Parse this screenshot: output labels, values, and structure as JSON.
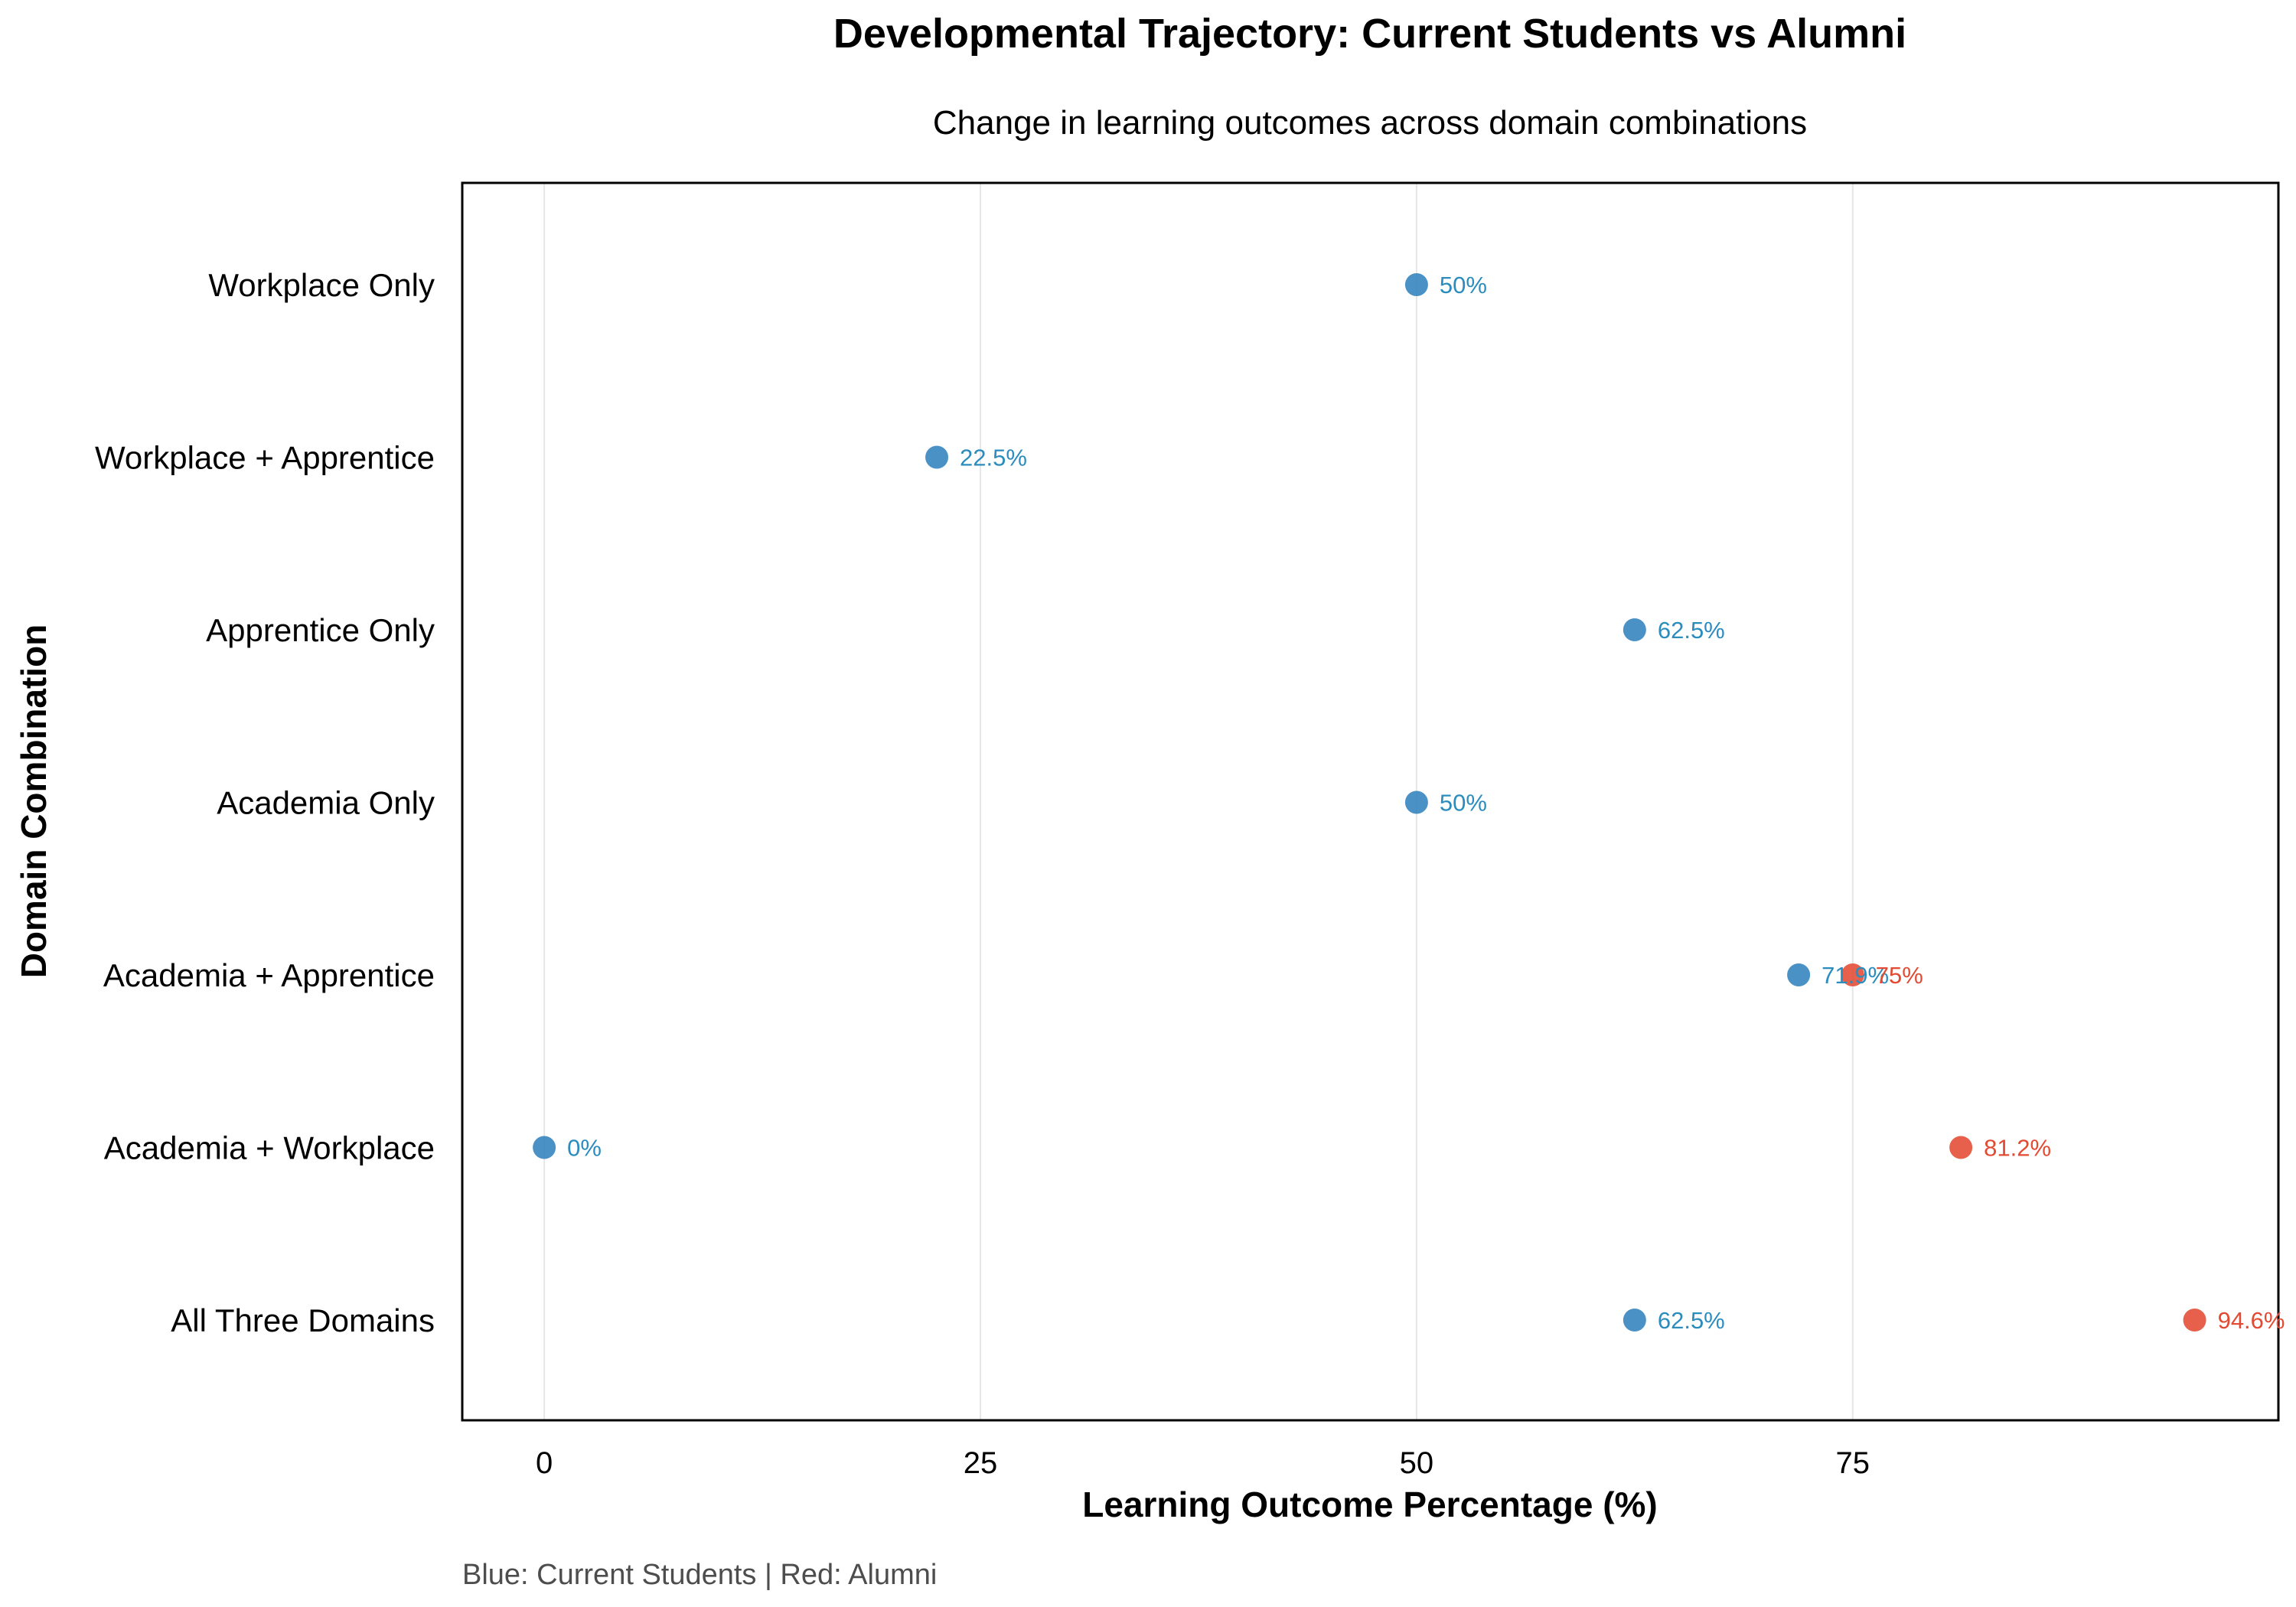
{
  "chart_data": {
    "type": "scatter",
    "title": "Developmental Trajectory: Current Students vs Alumni",
    "subtitle": "Change in learning outcomes across domain combinations",
    "xlabel": "Learning Outcome Percentage (%)",
    "ylabel": "Domain Combination",
    "caption": "Blue: Current Students | Red: Alumni",
    "xlim": [
      -4.7,
      99.4
    ],
    "xticks": [
      0,
      25,
      50,
      75
    ],
    "grid": "vertical",
    "categories": [
      "Workplace Only",
      "Workplace + Apprentice",
      "Apprentice Only",
      "Academia Only",
      "Academia + Apprentice",
      "Academia + Workplace",
      "All Three Domains"
    ],
    "series": [
      {
        "name": "Current Students",
        "color": "#3182bd",
        "label_color": "#2b8cbe",
        "points": [
          {
            "category": "Workplace Only",
            "value": 50,
            "label": "50%"
          },
          {
            "category": "Workplace + Apprentice",
            "value": 22.5,
            "label": "22.5%"
          },
          {
            "category": "Apprentice Only",
            "value": 62.5,
            "label": "62.5%"
          },
          {
            "category": "Academia Only",
            "value": 50,
            "label": "50%"
          },
          {
            "category": "Academia + Apprentice",
            "value": 71.9,
            "label": "71.9%"
          },
          {
            "category": "Academia + Workplace",
            "value": 0,
            "label": "0%"
          },
          {
            "category": "All Three Domains",
            "value": 62.5,
            "label": "62.5%"
          }
        ]
      },
      {
        "name": "Alumni",
        "color": "#e34a33",
        "label_color": "#e34a33",
        "points": [
          {
            "category": "Academia + Apprentice",
            "value": 75,
            "label": "75%"
          },
          {
            "category": "Academia + Workplace",
            "value": 81.2,
            "label": "81.2%"
          },
          {
            "category": "All Three Domains",
            "value": 94.6,
            "label": "94.6%"
          }
        ]
      }
    ]
  }
}
